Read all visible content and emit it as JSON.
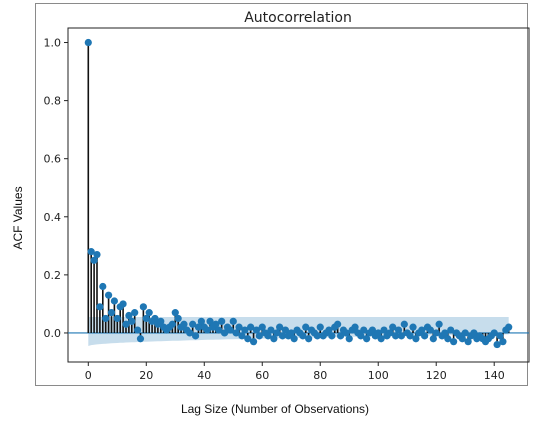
{
  "chart_data": {
    "type": "stem",
    "title": "Autocorrelation",
    "xlabel": "Lag Size (Number of Observations)",
    "ylabel": "ACF Values",
    "xlim": [
      -7,
      152
    ],
    "ylim": [
      -0.1,
      1.05
    ],
    "xticks": [
      0,
      20,
      40,
      60,
      80,
      100,
      120,
      140
    ],
    "yticks": [
      0.0,
      0.2,
      0.4,
      0.6,
      0.8,
      1.0
    ],
    "xtick_labels": [
      "0",
      "20",
      "40",
      "60",
      "80",
      "100",
      "120",
      "140"
    ],
    "ytick_labels": [
      "0.0",
      "0.2",
      "0.4",
      "0.6",
      "0.8",
      "1.0"
    ],
    "confidence_band": {
      "upper": 0.055,
      "lower_start": -0.045,
      "lower_end": -0.005
    },
    "grid": false,
    "lags": [
      0,
      1,
      2,
      3,
      4,
      5,
      6,
      7,
      8,
      9,
      10,
      11,
      12,
      13,
      14,
      15,
      16,
      17,
      18,
      19,
      20,
      21,
      22,
      23,
      24,
      25,
      26,
      27,
      28,
      29,
      30,
      31,
      32,
      33,
      34,
      35,
      36,
      37,
      38,
      39,
      40,
      41,
      42,
      43,
      44,
      45,
      46,
      47,
      48,
      49,
      50,
      51,
      52,
      53,
      54,
      55,
      56,
      57,
      58,
      59,
      60,
      61,
      62,
      63,
      64,
      65,
      66,
      67,
      68,
      69,
      70,
      71,
      72,
      73,
      74,
      75,
      76,
      77,
      78,
      79,
      80,
      81,
      82,
      83,
      84,
      85,
      86,
      87,
      88,
      89,
      90,
      91,
      92,
      93,
      94,
      95,
      96,
      97,
      98,
      99,
      100,
      101,
      102,
      103,
      104,
      105,
      106,
      107,
      108,
      109,
      110,
      111,
      112,
      113,
      114,
      115,
      116,
      117,
      118,
      119,
      120,
      121,
      122,
      123,
      124,
      125,
      126,
      127,
      128,
      129,
      130,
      131,
      132,
      133,
      134,
      135,
      136,
      137,
      138,
      139,
      140,
      141,
      142,
      143,
      144,
      145
    ],
    "values": [
      1.0,
      0.28,
      0.25,
      0.27,
      0.09,
      0.16,
      0.05,
      0.13,
      0.07,
      0.11,
      0.05,
      0.09,
      0.1,
      0.03,
      0.06,
      0.04,
      0.07,
      0.01,
      -0.02,
      0.09,
      0.05,
      0.07,
      0.04,
      0.05,
      0.03,
      0.04,
      0.02,
      0.01,
      0.02,
      0.03,
      0.07,
      0.05,
      0.02,
      0.03,
      0.01,
      0.0,
      0.03,
      -0.01,
      0.02,
      0.04,
      0.02,
      0.01,
      0.04,
      0.02,
      0.03,
      0.01,
      0.04,
      0.0,
      0.02,
      0.01,
      0.04,
      0.0,
      0.02,
      -0.01,
      0.01,
      -0.02,
      0.02,
      -0.03,
      0.01,
      -0.01,
      0.02,
      0.0,
      -0.01,
      0.01,
      -0.02,
      0.0,
      0.02,
      -0.01,
      0.01,
      -0.01,
      0.0,
      -0.02,
      0.01,
      0.0,
      -0.01,
      0.02,
      -0.02,
      0.01,
      0.0,
      -0.01,
      0.02,
      -0.01,
      0.0,
      0.01,
      -0.01,
      0.02,
      0.03,
      -0.01,
      0.01,
      0.0,
      -0.02,
      0.01,
      0.02,
      0.0,
      -0.01,
      0.01,
      -0.02,
      0.0,
      0.01,
      -0.01,
      0.0,
      -0.02,
      0.01,
      -0.01,
      0.0,
      0.02,
      -0.01,
      0.01,
      -0.01,
      0.03,
      0.0,
      -0.01,
      0.02,
      -0.02,
      0.0,
      0.01,
      -0.01,
      0.02,
      0.01,
      -0.02,
      0.0,
      0.03,
      -0.01,
      0.0,
      -0.02,
      0.01,
      -0.03,
      0.0,
      -0.01,
      -0.02,
      0.0,
      -0.03,
      -0.01,
      0.0,
      -0.02,
      -0.01,
      -0.02,
      -0.03,
      -0.02,
      -0.01,
      0.0,
      -0.04,
      -0.01,
      -0.03,
      0.01,
      0.02
    ],
    "colors": {
      "marker": "#1f77b4",
      "stem": "#111111",
      "band": "#1f77b4",
      "baseline": "#1f77b4"
    }
  }
}
